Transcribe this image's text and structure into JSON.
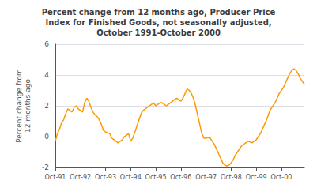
{
  "chart_data": {
    "type": "line",
    "title": "Percent change from 12 months ago, Producer Price\nIndex for Finished Goods, not seasonally adjusted,\nOctober 1991-October 2000",
    "ylabel": "Percent change from\n12 months ago",
    "color": "#FF9900",
    "categories": [
      "Oct-91",
      null,
      null,
      null,
      null,
      null,
      null,
      null,
      null,
      null,
      null,
      null,
      "Oct-92",
      null,
      null,
      null,
      null,
      null,
      null,
      null,
      null,
      null,
      null,
      null,
      "Oct-93",
      null,
      null,
      null,
      null,
      null,
      null,
      null,
      null,
      null,
      null,
      null,
      "Oct-94",
      null,
      null,
      null,
      null,
      null,
      null,
      null,
      null,
      null,
      null,
      null,
      "Oct-95",
      null,
      null,
      null,
      null,
      null,
      null,
      null,
      null,
      null,
      null,
      null,
      "Oct-96",
      null,
      null,
      null,
      null,
      null,
      null,
      null,
      null,
      null,
      null,
      null,
      "Oct-97",
      null,
      null,
      null,
      null,
      null,
      null,
      null,
      null,
      null,
      null,
      null,
      "Oct-98",
      null,
      null,
      null,
      null,
      null,
      null,
      null,
      null,
      null,
      null,
      null,
      "Oct-99",
      null,
      null,
      null,
      null,
      null,
      null,
      null,
      null,
      null,
      null,
      null,
      "Oct-00",
      null,
      null,
      null,
      null,
      null,
      null,
      null,
      null,
      null,
      null,
      null
    ],
    "values": [
      -0.3,
      0.2,
      0.5,
      0.9,
      1.1,
      1.5,
      1.8,
      1.7,
      1.6,
      1.9,
      2.0,
      1.8,
      1.7,
      1.6,
      2.2,
      2.5,
      2.3,
      1.9,
      1.6,
      1.4,
      1.3,
      1.1,
      0.8,
      0.4,
      0.3,
      0.25,
      0.2,
      -0.1,
      -0.2,
      -0.3,
      -0.4,
      -0.3,
      -0.2,
      0.0,
      0.1,
      0.2,
      -0.3,
      -0.1,
      0.3,
      0.7,
      1.1,
      1.5,
      1.7,
      1.8,
      1.9,
      2.0,
      2.1,
      2.2,
      2.0,
      2.1,
      2.2,
      2.2,
      2.1,
      2.0,
      2.1,
      2.2,
      2.3,
      2.4,
      2.5,
      2.4,
      2.3,
      2.5,
      2.8,
      3.1,
      3.0,
      2.8,
      2.5,
      2.0,
      1.4,
      0.8,
      0.2,
      -0.1,
      -0.1,
      -0.05,
      -0.1,
      -0.3,
      -0.5,
      -0.8,
      -1.1,
      -1.4,
      -1.7,
      -1.85,
      -1.9,
      -1.85,
      -1.7,
      -1.5,
      -1.2,
      -1.0,
      -0.8,
      -0.6,
      -0.5,
      -0.4,
      -0.3,
      -0.35,
      -0.4,
      -0.3,
      -0.2,
      0.0,
      0.2,
      0.5,
      0.8,
      1.1,
      1.5,
      1.8,
      2.0,
      2.2,
      2.5,
      2.8,
      3.0,
      3.2,
      3.5,
      3.8,
      4.1,
      4.3,
      4.4,
      4.3,
      4.1,
      3.8,
      3.6,
      3.4
    ],
    "ylim": [
      -2.0,
      6.0
    ],
    "yticks": [
      -2.0,
      0.0,
      2.0,
      4.0,
      6.0
    ],
    "grid": true
  }
}
